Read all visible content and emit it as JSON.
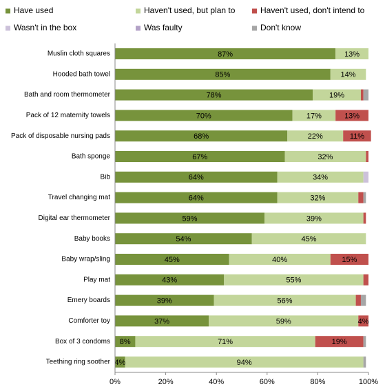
{
  "chart_data": {
    "type": "stacked-barh",
    "categories": [
      "Muslin cloth squares",
      "Hooded bath towel",
      "Bath and room thermometer",
      "Pack of 12 maternity towels",
      "Pack of disposable nursing pads",
      "Bath sponge",
      "Bib",
      "Travel changing mat",
      "Digital ear thermometer",
      "Baby books",
      "Baby wrap/sling",
      "Play mat",
      "Emery boards",
      "Comforter toy",
      "Box of 3 condoms",
      "Teething ring soother"
    ],
    "series": [
      {
        "name": "Have used",
        "color": "#77933c",
        "values": [
          87,
          85,
          78,
          70,
          68,
          67,
          64,
          64,
          59,
          54,
          45,
          43,
          39,
          37,
          8,
          4
        ],
        "value_labels": [
          "87%",
          "85%",
          "78%",
          "70%",
          "68%",
          "67%",
          "64%",
          "64%",
          "59%",
          "54%",
          "45%",
          "43%",
          "39%",
          "37%",
          "8%",
          "4%"
        ]
      },
      {
        "name": "Haven't used, but plan to",
        "color": "#c3d69b",
        "values": [
          13,
          14,
          19,
          17,
          22,
          32,
          34,
          32,
          39,
          45,
          40,
          55,
          56,
          59,
          71,
          94
        ],
        "value_labels": [
          "13%",
          "14%",
          "19%",
          "17%",
          "22%",
          "32%",
          "34%",
          "32%",
          "39%",
          "45%",
          "40%",
          "55%",
          "56%",
          "59%",
          "71%",
          "94%"
        ]
      },
      {
        "name": "Haven't used, don't intend to",
        "color": "#c0504d",
        "values": [
          0,
          0,
          1,
          13,
          11,
          1,
          0,
          2,
          1,
          0,
          15,
          2,
          2,
          4,
          19,
          0
        ],
        "value_labels": [
          null,
          null,
          null,
          "13%",
          "11%",
          null,
          null,
          null,
          null,
          null,
          "15%",
          null,
          null,
          "4%",
          "19%",
          null
        ]
      },
      {
        "name": "Wasn't in the box",
        "color": "#ccc1da",
        "values": [
          0,
          0,
          0,
          0,
          0,
          0,
          2,
          0,
          0,
          0,
          0,
          0,
          0,
          0,
          0,
          0
        ]
      },
      {
        "name": "Was faulty",
        "color": "#b3a2c7",
        "values": [
          0,
          0,
          0,
          0,
          0,
          0,
          0,
          0,
          0,
          0,
          0,
          0,
          0,
          0,
          0,
          0
        ]
      },
      {
        "name": "Don't know",
        "color": "#a6a6a6",
        "values": [
          0,
          0,
          2,
          0,
          0,
          0,
          0,
          1,
          0,
          0,
          0,
          0,
          2,
          0,
          1,
          1
        ]
      }
    ],
    "xlim": [
      0,
      100
    ],
    "xticks": [
      {
        "value": 0,
        "label": "0%"
      },
      {
        "value": 20,
        "label": "20%"
      },
      {
        "value": 40,
        "label": "40%"
      },
      {
        "value": 60,
        "label": "60%"
      },
      {
        "value": 80,
        "label": "80%"
      },
      {
        "value": 100,
        "label": "100%"
      }
    ]
  }
}
